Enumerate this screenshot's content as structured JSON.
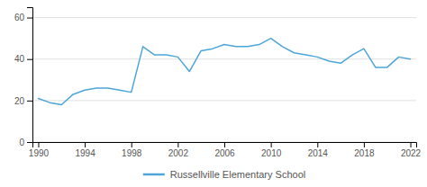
{
  "chart_data": {
    "type": "line",
    "x": [
      1990,
      1991,
      1992,
      1993,
      1994,
      1995,
      1996,
      1997,
      1998,
      1999,
      2000,
      2001,
      2002,
      2003,
      2004,
      2005,
      2006,
      2007,
      2008,
      2009,
      2010,
      2011,
      2012,
      2013,
      2014,
      2015,
      2016,
      2017,
      2018,
      2019,
      2020,
      2021,
      2022
    ],
    "series": [
      {
        "name": "Russellville Elementary School",
        "color": "#4da6d9",
        "values": [
          21,
          19,
          18,
          23,
          25,
          26,
          26,
          25,
          24,
          46,
          42,
          42,
          41,
          34,
          44,
          45,
          47,
          46,
          46,
          47,
          50,
          46,
          43,
          42,
          41,
          39,
          38,
          42,
          45,
          36,
          36,
          41,
          40
        ]
      }
    ],
    "xlim": [
      1989.5,
      2022.5
    ],
    "xticks": [
      1990,
      1994,
      1998,
      2002,
      2006,
      2010,
      2014,
      2018,
      2022
    ],
    "ylim": [
      0,
      65
    ],
    "yticks": [
      0,
      20,
      40,
      60
    ],
    "grid": true,
    "legend": "bottom"
  }
}
